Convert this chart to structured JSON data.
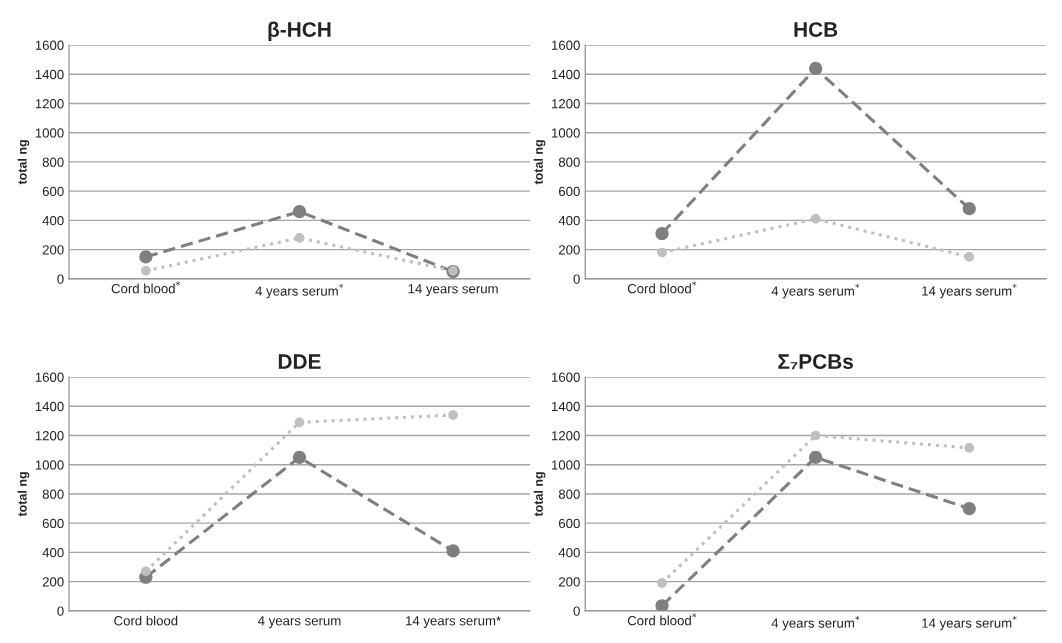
{
  "chart_data": [
    {
      "type": "line",
      "title": "β-HCH",
      "ylabel": "total ng",
      "categories": [
        "Cord blood$^{*}$",
        "4 years serum$^{*}$",
        "14 years serum"
      ],
      "ylim": [
        0,
        1600
      ],
      "yticks": [
        0,
        200,
        400,
        600,
        800,
        1000,
        1200,
        1400,
        1600
      ],
      "grid": "y",
      "legend": false,
      "marker": "circle",
      "series": [
        {
          "color": "#7f7f7f",
          "line_style": "dashed",
          "values": [
            150,
            460,
            50
          ]
        },
        {
          "color": "#bfbfbf",
          "line_style": "dotted",
          "values": [
            55,
            280,
            55
          ]
        }
      ]
    },
    {
      "type": "line",
      "title": "HCB",
      "ylabel": "total ng",
      "categories": [
        "Cord blood$^{*}$",
        "4 years serum$^{*}$",
        "14 years serum$^{*}$"
      ],
      "ylim": [
        0,
        1600
      ],
      "yticks": [
        0,
        200,
        400,
        600,
        800,
        1000,
        1200,
        1400,
        1600
      ],
      "grid": "y",
      "legend": false,
      "marker": "circle",
      "series": [
        {
          "color": "#7f7f7f",
          "line_style": "dashed",
          "values": [
            310,
            1440,
            480
          ]
        },
        {
          "color": "#bfbfbf",
          "line_style": "dotted",
          "values": [
            180,
            410,
            150
          ]
        }
      ]
    },
    {
      "type": "line",
      "title": "DDE",
      "ylabel": "total ng",
      "categories": [
        "Cord blood",
        "4 years serum",
        "14 years serum*"
      ],
      "ylim": [
        0,
        1600
      ],
      "yticks": [
        0,
        200,
        400,
        600,
        800,
        1000,
        1200,
        1400,
        1600
      ],
      "grid": "y",
      "legend": false,
      "marker": "circle",
      "series": [
        {
          "color": "#7f7f7f",
          "line_style": "dashed",
          "values": [
            230,
            1050,
            410
          ]
        },
        {
          "color": "#bfbfbf",
          "line_style": "dotted",
          "values": [
            270,
            1290,
            1340
          ]
        }
      ]
    },
    {
      "type": "line",
      "title": "Σ₇PCBs",
      "ylabel": "total ng",
      "categories": [
        "Cord blood$^{*}$",
        "4 years serum$^{*}$",
        "14 years serum$^{*}$"
      ],
      "ylim": [
        0,
        1600
      ],
      "yticks": [
        0,
        200,
        400,
        600,
        800,
        1000,
        1200,
        1400,
        1600
      ],
      "grid": "y",
      "legend": false,
      "marker": "circle",
      "series": [
        {
          "color": "#7f7f7f",
          "line_style": "dashed",
          "values": [
            35,
            1050,
            700
          ]
        },
        {
          "color": "#bfbfbf",
          "line_style": "dotted",
          "values": [
            190,
            1200,
            1115
          ]
        }
      ]
    }
  ]
}
